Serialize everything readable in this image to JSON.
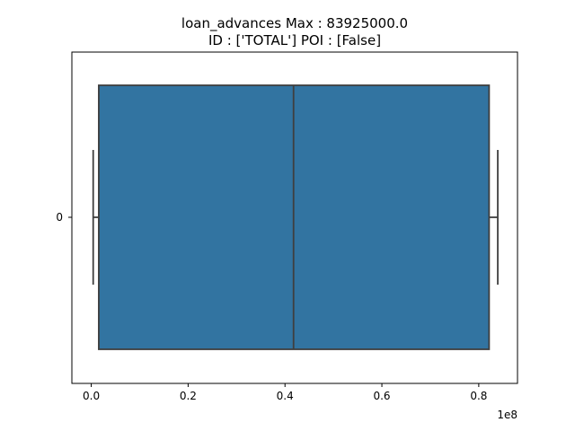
{
  "chart_data": {
    "type": "boxplot",
    "title_lines": [
      "loan_advances  Max : 83925000.0",
      "ID : ['TOTAL']  POI : [False]"
    ],
    "xlabel": "",
    "ylabel": "",
    "x_offset_label": "1e8",
    "xlim": [
      -4000000,
      88000000
    ],
    "x_ticks": [
      0,
      20000000,
      40000000,
      60000000,
      80000000
    ],
    "x_tick_labels": [
      "0.0",
      "0.2",
      "0.4",
      "0.6",
      "0.8"
    ],
    "y_tick_labels": [
      "0"
    ],
    "box": {
      "category": "0",
      "whisker_low": 400000,
      "q1": 1550000,
      "median": 41762500,
      "q3": 82137500,
      "whisker_high": 83925000
    },
    "colors": {
      "box_fill": "#3274a1",
      "line": "#3f3f3f"
    }
  }
}
